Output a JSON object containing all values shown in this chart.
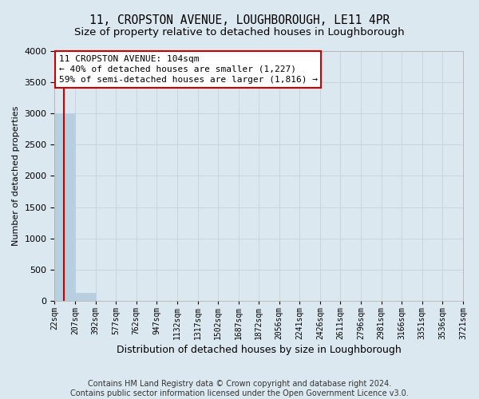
{
  "title": "11, CROPSTON AVENUE, LOUGHBOROUGH, LE11 4PR",
  "subtitle": "Size of property relative to detached houses in Loughborough",
  "xlabel": "Distribution of detached houses by size in Loughborough",
  "ylabel": "Number of detached properties",
  "bin_edges": [
    22,
    207,
    392,
    577,
    762,
    947,
    1132,
    1317,
    1502,
    1687,
    1872,
    2056,
    2241,
    2426,
    2611,
    2796,
    2981,
    3166,
    3351,
    3536,
    3721
  ],
  "bar_heights": [
    3000,
    125,
    0,
    0,
    0,
    0,
    0,
    0,
    0,
    0,
    0,
    0,
    0,
    0,
    0,
    0,
    0,
    0,
    0,
    0
  ],
  "bar_color": "#b8cfe0",
  "bar_edge_color": "#b8cfe0",
  "property_size": 104,
  "property_line_color": "#cc0000",
  "ylim": [
    0,
    4000
  ],
  "yticks": [
    0,
    500,
    1000,
    1500,
    2000,
    2500,
    3000,
    3500,
    4000
  ],
  "grid_color": "#c8d4e0",
  "background_color": "#dce8f0",
  "plot_bg_color": "#dce8f0",
  "annotation_text": "11 CROPSTON AVENUE: 104sqm\n← 40% of detached houses are smaller (1,227)\n59% of semi-detached houses are larger (1,816) →",
  "annotation_box_facecolor": "#ffffff",
  "annotation_box_edgecolor": "#cc0000",
  "footer_text": "Contains HM Land Registry data © Crown copyright and database right 2024.\nContains public sector information licensed under the Open Government Licence v3.0.",
  "title_fontsize": 10.5,
  "subtitle_fontsize": 9.5,
  "annotation_fontsize": 8,
  "ylabel_fontsize": 8,
  "xlabel_fontsize": 9,
  "ytick_fontsize": 8,
  "xtick_fontsize": 7,
  "footer_fontsize": 7
}
